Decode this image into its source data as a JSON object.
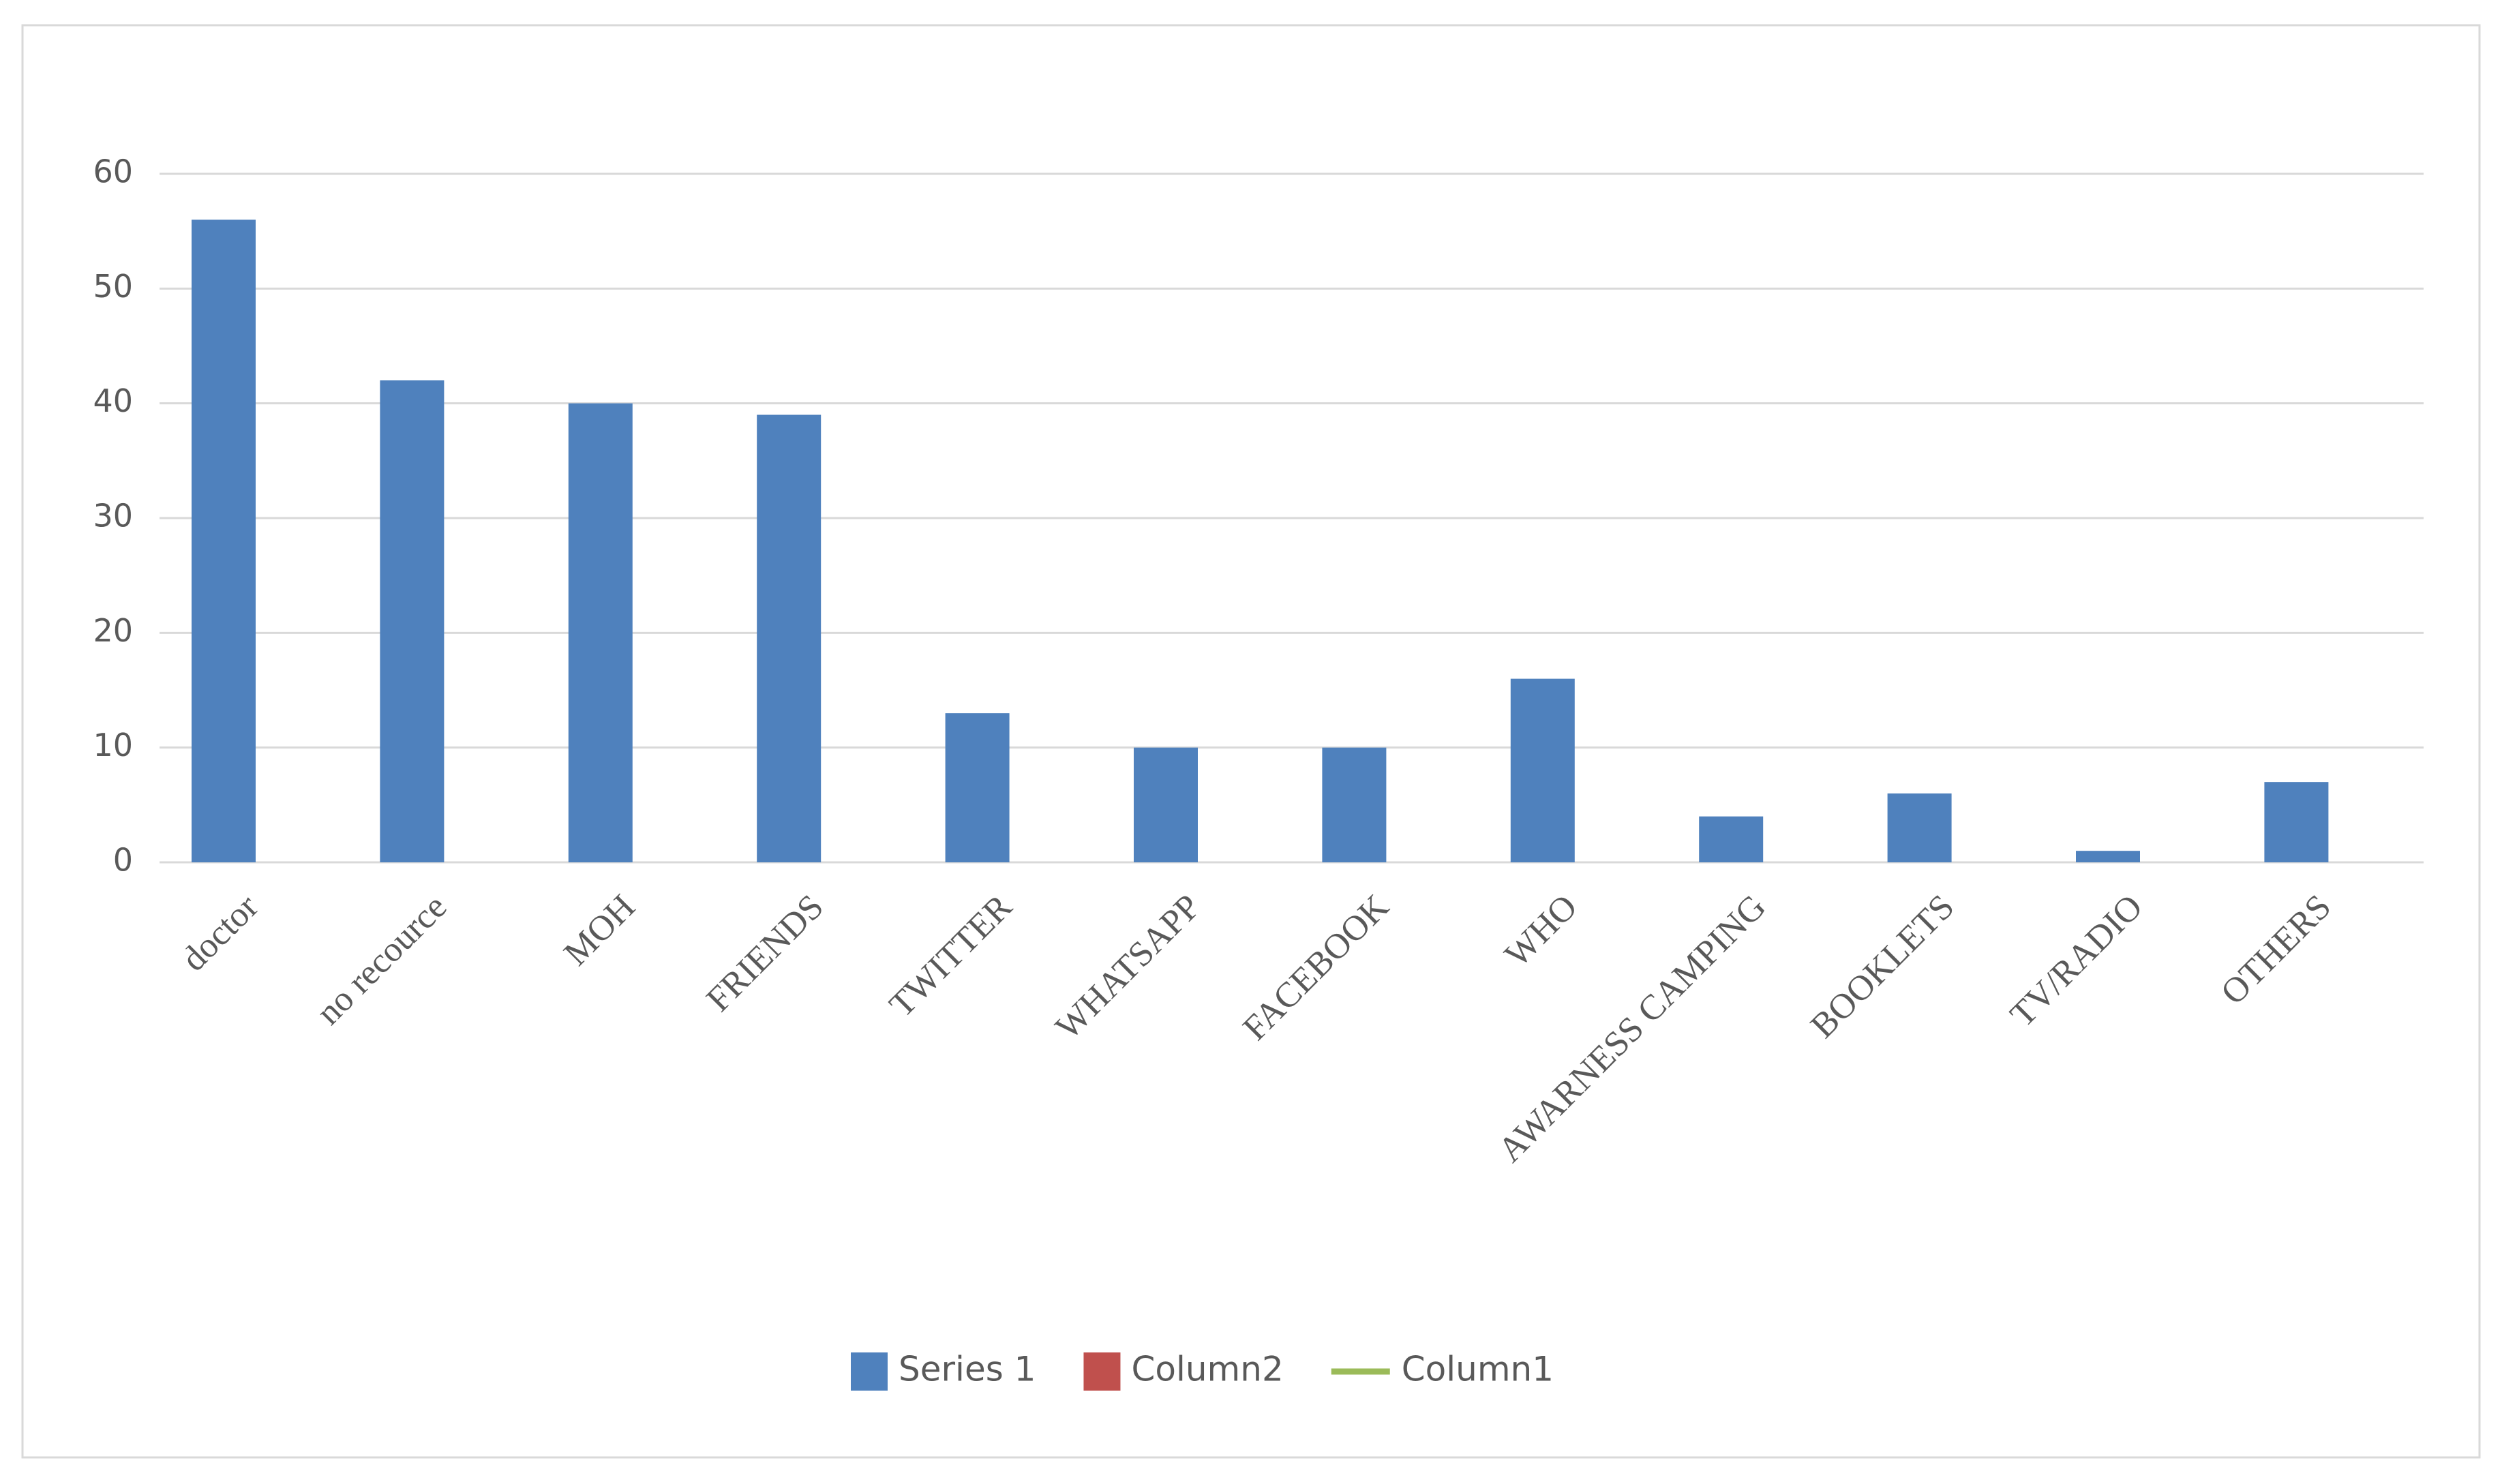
{
  "chart_data": {
    "type": "bar",
    "categories": [
      "doctor",
      "no recource",
      "MOH",
      "FRIENDS",
      "TWITTER",
      "WHATSAPP",
      "FACEBOOK",
      "WHO",
      "AWARNESS CAMPING",
      "BOOKLETS",
      "TV/RADIO",
      "OTHERS"
    ],
    "series": [
      {
        "name": "Series 1",
        "color": "#4f81bd",
        "values": [
          56,
          42,
          40,
          39,
          13,
          10,
          10,
          16,
          4,
          6,
          1,
          7
        ]
      },
      {
        "name": "Column2",
        "color": "#c0504d",
        "values": [
          null,
          null,
          null,
          null,
          null,
          null,
          null,
          null,
          null,
          null,
          null,
          null
        ]
      },
      {
        "name": "Column1",
        "color": "#9bbb59",
        "kind": "line",
        "values": [
          null,
          null,
          null,
          null,
          null,
          null,
          null,
          null,
          null,
          null,
          null,
          null
        ]
      }
    ],
    "ylim": [
      0,
      60
    ],
    "yticks": [
      0,
      10,
      20,
      30,
      40,
      50,
      60
    ],
    "grid": true,
    "legend": "bottom"
  }
}
